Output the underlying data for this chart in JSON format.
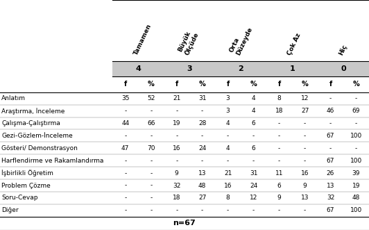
{
  "col_headers_rotated": [
    "Tamamen",
    "Büyük\nÖlçüde",
    "Orta\nDüzeyde",
    "Çok Az",
    "Hiç"
  ],
  "col_numbers": [
    "4",
    "3",
    "2",
    "1",
    "0"
  ],
  "sub_headers": [
    "f",
    "%",
    "f",
    "%",
    "f",
    "%",
    "f",
    "%",
    "f",
    "%"
  ],
  "rows": [
    {
      "label": "Anlatım",
      "values": [
        "35",
        "52",
        "21",
        "31",
        "3",
        "4",
        "8",
        "12",
        "-",
        "-"
      ]
    },
    {
      "label": "Araştırma, İnceleme",
      "values": [
        "-",
        "-",
        "-",
        "-",
        "3",
        "4",
        "18",
        "27",
        "46",
        "69"
      ]
    },
    {
      "label": "Çalışma-Çalıştırma",
      "values": [
        "44",
        "66",
        "19",
        "28",
        "4",
        "6",
        "-",
        "-",
        "-",
        "-"
      ]
    },
    {
      "label": "Gezi-Gözlem-İnceleme",
      "values": [
        "-",
        "-",
        "-",
        "-",
        "-",
        "-",
        "-",
        "-",
        "67",
        "100"
      ]
    },
    {
      "label": "Gösteri/ Demonstrasyon",
      "values": [
        "47",
        "70",
        "16",
        "24",
        "4",
        "6",
        "-",
        "-",
        "-",
        "-"
      ]
    },
    {
      "label": "Harflendirme ve Rakamlandırma",
      "values": [
        "-",
        "-",
        "-",
        "-",
        "-",
        "-",
        "-",
        "-",
        "67",
        "100"
      ]
    },
    {
      "label": "İşbirlikli Öğretim",
      "values": [
        "-",
        "-",
        "9",
        "13",
        "21",
        "31",
        "11",
        "16",
        "26",
        "39"
      ]
    },
    {
      "label": "Problem Çözme",
      "values": [
        "-",
        "-",
        "32",
        "48",
        "16",
        "24",
        "6",
        "9",
        "13",
        "19"
      ]
    },
    {
      "label": "Soru-Cevap",
      "values": [
        "-",
        "-",
        "18",
        "27",
        "8",
        "12",
        "9",
        "13",
        "32",
        "48"
      ]
    },
    {
      "label": "Diğer",
      "values": [
        "-",
        "-",
        "-",
        "-",
        "-",
        "-",
        "-",
        "-",
        "67",
        "100"
      ]
    }
  ],
  "footer": "n=67",
  "header_bg": "#c8c8c8",
  "fig_width": 5.32,
  "fig_height": 3.31,
  "dpi": 100
}
